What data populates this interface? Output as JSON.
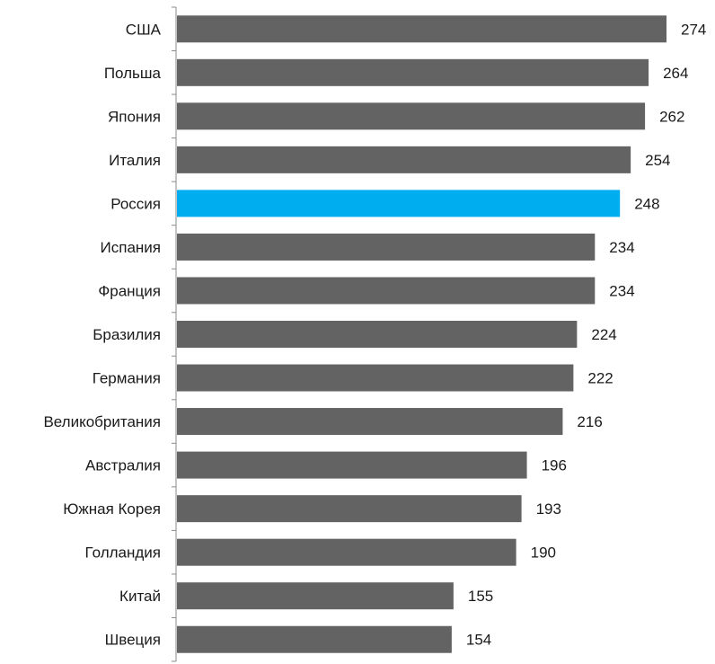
{
  "chart_data": {
    "type": "bar",
    "orientation": "horizontal",
    "title": "",
    "xlabel": "",
    "ylabel": "",
    "categories": [
      "США",
      "Польша",
      "Япония",
      "Италия",
      "Россия",
      "Испания",
      "Франция",
      "Бразилия",
      "Германия",
      "Великобритания",
      "Австралия",
      "Южная Корея",
      "Голландия",
      "Китай",
      "Швеция"
    ],
    "values": [
      274,
      264,
      262,
      254,
      248,
      234,
      234,
      224,
      222,
      216,
      196,
      193,
      190,
      155,
      154
    ],
    "xlim": [
      0,
      274
    ],
    "highlight_category": "Россия",
    "colors": {
      "bar": "#636363",
      "highlight": "#00aeef",
      "axis": "#8a8a8a"
    },
    "grid": false,
    "legend": "none",
    "data_labels": true
  }
}
